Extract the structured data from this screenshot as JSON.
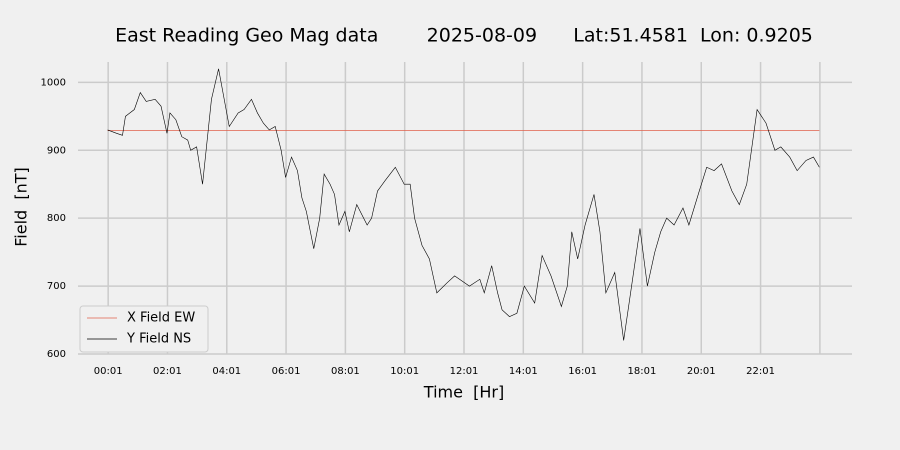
{
  "chart_data": {
    "type": "line",
    "title": "East Reading Geo Mag data        2025-08-09      Lat:51.4581  Lon: 0.9205",
    "x_label": "Time  [Hr]",
    "y_label": "Field  [nT]",
    "xlim": [
      -1.0,
      25.1
    ],
    "ylim": [
      600,
      1030
    ],
    "xticks": [
      {
        "value": 0.0167,
        "label": "00:01"
      },
      {
        "value": 2.0167,
        "label": "02:01"
      },
      {
        "value": 4.0167,
        "label": "04:01"
      },
      {
        "value": 6.0167,
        "label": "06:01"
      },
      {
        "value": 8.0167,
        "label": "08:01"
      },
      {
        "value": 10.0167,
        "label": "10:01"
      },
      {
        "value": 12.0167,
        "label": "12:01"
      },
      {
        "value": 14.0167,
        "label": "14:01"
      },
      {
        "value": 16.0167,
        "label": "16:01"
      },
      {
        "value": 18.0167,
        "label": "18:01"
      },
      {
        "value": 20.0167,
        "label": "20:01"
      },
      {
        "value": 22.0167,
        "label": "22:01"
      },
      {
        "value": 24.0167,
        "label": null
      }
    ],
    "yticks": [
      600,
      700,
      800,
      900,
      1000
    ],
    "grid": true,
    "legend": "lower left",
    "series": [
      {
        "name": "X Field EW",
        "color": "#e0604a",
        "x": [
          0.0,
          24.0
        ],
        "values": [
          929,
          929
        ]
      },
      {
        "name": "Y Field NS",
        "color": "#000000",
        "x": [
          0.0,
          0.3,
          0.5,
          0.6,
          0.9,
          1.1,
          1.3,
          1.6,
          1.8,
          2.0,
          2.1,
          2.3,
          2.5,
          2.7,
          2.8,
          3.0,
          3.2,
          3.5,
          3.74,
          4.1,
          4.4,
          4.6,
          4.85,
          5.05,
          5.25,
          5.45,
          5.65,
          5.85,
          6.0,
          6.2,
          6.4,
          6.55,
          6.7,
          6.95,
          7.15,
          7.3,
          7.5,
          7.65,
          7.8,
          8.0,
          8.15,
          8.4,
          8.75,
          8.9,
          9.1,
          9.35,
          9.7,
          10.0,
          10.2,
          10.35,
          10.6,
          10.85,
          11.1,
          11.45,
          11.7,
          12.2,
          12.55,
          12.7,
          12.95,
          13.15,
          13.3,
          13.55,
          13.8,
          14.05,
          14.4,
          14.65,
          14.95,
          15.3,
          15.5,
          15.65,
          15.85,
          16.1,
          16.4,
          16.6,
          16.8,
          17.1,
          17.4,
          17.6,
          17.8,
          17.95,
          18.2,
          18.45,
          18.65,
          18.85,
          19.1,
          19.4,
          19.6,
          19.95,
          20.2,
          20.45,
          20.7,
          21.05,
          21.3,
          21.55,
          21.9,
          22.2,
          22.5,
          22.7,
          23.0,
          23.25,
          23.55,
          23.8,
          24.0
        ],
        "values": [
          930,
          925,
          922,
          950,
          960,
          985,
          972,
          975,
          965,
          925,
          955,
          945,
          920,
          915,
          900,
          905,
          850,
          975,
          1020,
          935,
          955,
          960,
          975,
          955,
          940,
          930,
          935,
          900,
          860,
          890,
          870,
          830,
          810,
          755,
          800,
          865,
          850,
          835,
          790,
          810,
          780,
          820,
          790,
          800,
          840,
          855,
          875,
          850,
          850,
          800,
          760,
          740,
          690,
          705,
          715,
          700,
          710,
          690,
          730,
          690,
          665,
          655,
          660,
          700,
          675,
          745,
          715,
          670,
          700,
          780,
          740,
          790,
          835,
          780,
          690,
          720,
          620,
          680,
          740,
          785,
          700,
          750,
          780,
          800,
          790,
          815,
          790,
          840,
          875,
          870,
          880,
          840,
          820,
          850,
          960,
          940,
          900,
          905,
          890,
          870,
          885,
          890,
          875
        ]
      }
    ]
  }
}
